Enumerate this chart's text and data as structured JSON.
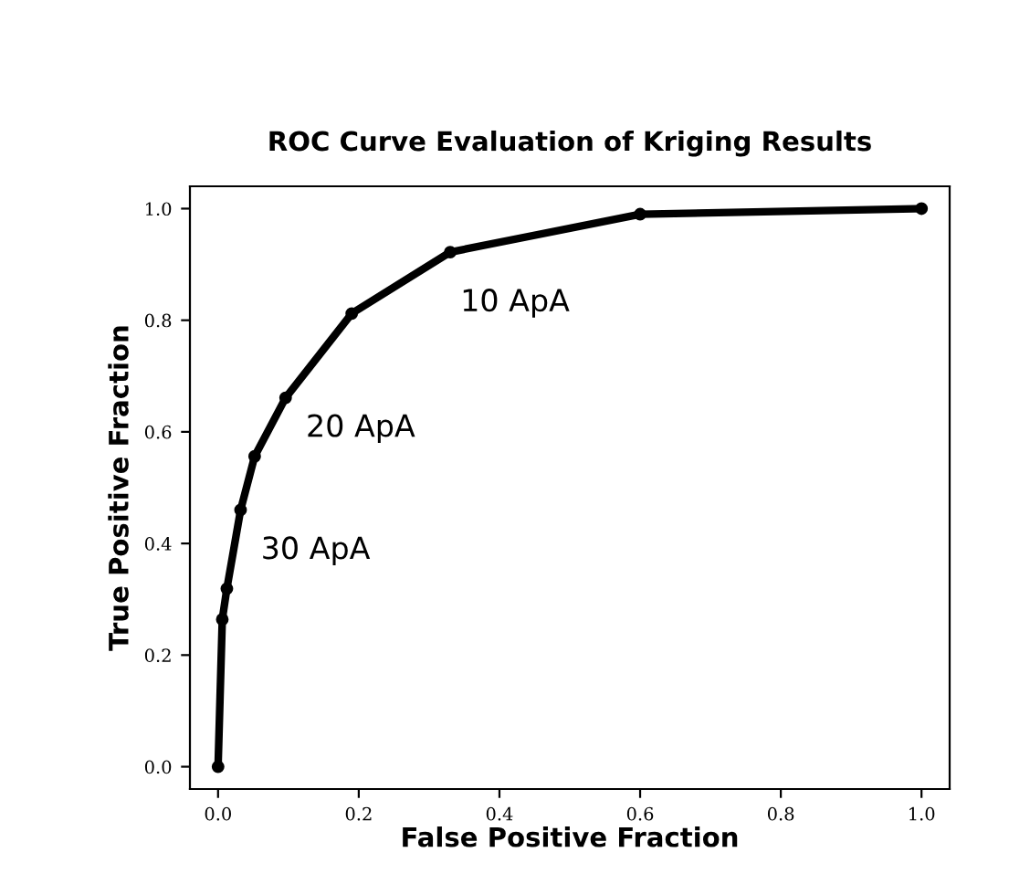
{
  "chart_data": {
    "type": "line",
    "title": "ROC Curve Evaluation of Kriging Results",
    "xlabel": "False Positive Fraction",
    "ylabel": "True Positive Fraction",
    "x": [
      0.0,
      0.006,
      0.0125,
      0.032,
      0.052,
      0.096,
      0.19,
      0.33,
      0.6,
      1.0
    ],
    "series": [
      {
        "color": "#000000",
        "values": [
          0.0,
          0.264,
          0.319,
          0.46,
          0.556,
          0.661,
          0.812,
          0.922,
          0.99,
          1.0
        ]
      }
    ],
    "marker": "circle",
    "line_style": "solid",
    "grid": false,
    "legend": false,
    "xlim": [
      -0.04,
      1.04
    ],
    "ylim": [
      -0.04,
      1.04
    ],
    "xticks": [
      {
        "value": 0,
        "label": "0.0"
      },
      {
        "value": 0.2,
        "label": "0.2"
      },
      {
        "value": 0.4,
        "label": "0.4"
      },
      {
        "value": 0.6,
        "label": "0.6"
      },
      {
        "value": 0.8,
        "label": "0.8"
      },
      {
        "value": 1,
        "label": "1.0"
      }
    ],
    "yticks": [
      {
        "value": 0,
        "label": "0.0"
      },
      {
        "value": 0.2,
        "label": "0.2"
      },
      {
        "value": 0.4,
        "label": "0.4"
      },
      {
        "value": 0.6,
        "label": "0.6"
      },
      {
        "value": 0.8,
        "label": "0.8"
      },
      {
        "value": 1,
        "label": "1.0"
      }
    ],
    "annotations": [
      {
        "text": "10 ApA",
        "x": 0.33,
        "y": 0.922
      },
      {
        "text": "20 ApA",
        "x": 0.096,
        "y": 0.661
      },
      {
        "text": "30 ApA",
        "x": 0.032,
        "y": 0.46
      }
    ]
  }
}
